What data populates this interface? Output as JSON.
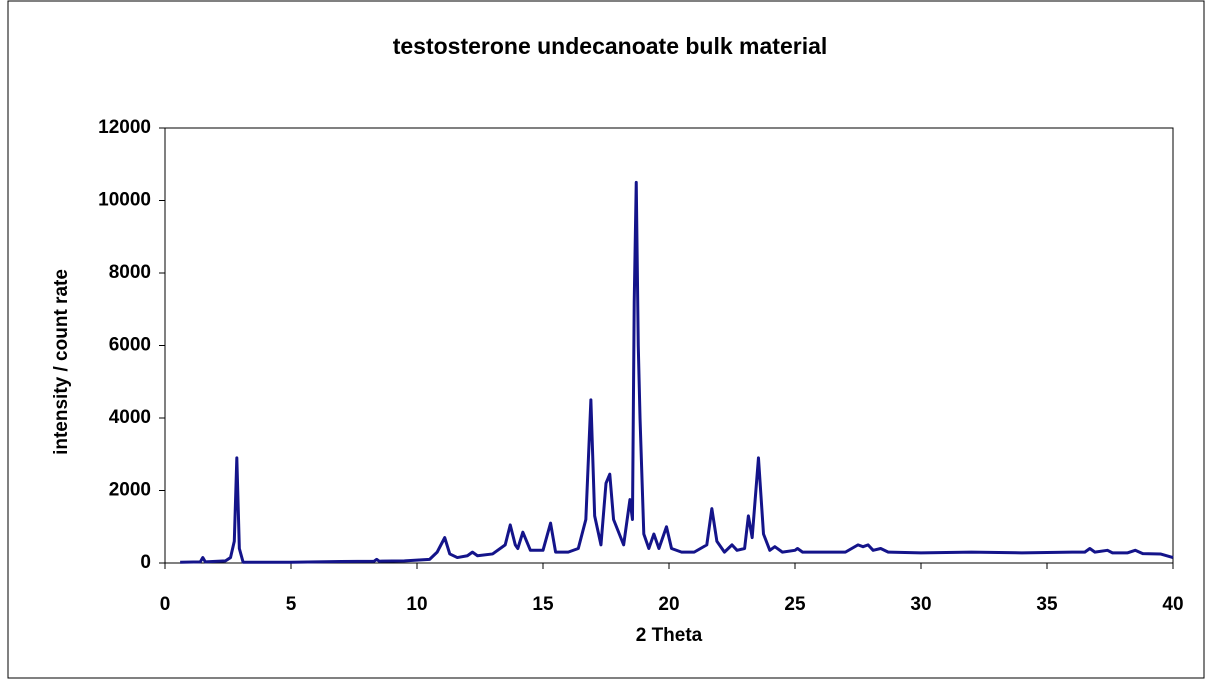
{
  "chart_data": {
    "type": "line",
    "title": "testosterone undecanoate bulk material",
    "xlabel": "2 Theta",
    "ylabel": "intensity / count rate",
    "x": [
      0.6,
      1.4,
      1.5,
      1.6,
      2.4,
      2.6,
      2.75,
      2.85,
      2.95,
      3.1,
      5,
      7,
      8.3,
      8.4,
      8.5,
      9.5,
      10.5,
      10.8,
      11.1,
      11.3,
      11.6,
      12.0,
      12.2,
      12.4,
      13.0,
      13.5,
      13.7,
      13.9,
      14.0,
      14.2,
      14.5,
      15.0,
      15.3,
      15.5,
      16.0,
      16.4,
      16.7,
      16.9,
      17.05,
      17.3,
      17.5,
      17.65,
      17.8,
      18.2,
      18.45,
      18.55,
      18.62,
      18.7,
      18.78,
      18.85,
      19.0,
      19.2,
      19.4,
      19.6,
      19.9,
      20.1,
      20.5,
      21.0,
      21.5,
      21.7,
      21.9,
      22.2,
      22.5,
      22.7,
      23.0,
      23.15,
      23.3,
      23.55,
      23.75,
      24.0,
      24.2,
      24.5,
      25.0,
      25.1,
      25.3,
      26,
      27,
      27.5,
      27.7,
      27.9,
      28.1,
      28.4,
      28.7,
      30,
      32,
      34,
      36,
      36.5,
      36.7,
      36.9,
      37.4,
      37.6,
      38.2,
      38.5,
      38.8,
      39.5,
      40
    ],
    "series": [
      {
        "name": "testosterone undecanoate",
        "color": "#14148a",
        "values": [
          20,
          30,
          150,
          30,
          60,
          150,
          600,
          2900,
          400,
          20,
          20,
          40,
          50,
          100,
          50,
          60,
          100,
          300,
          700,
          250,
          150,
          200,
          300,
          200,
          250,
          500,
          1050,
          500,
          400,
          850,
          350,
          350,
          1100,
          300,
          300,
          400,
          1200,
          4500,
          1300,
          500,
          2200,
          2450,
          1200,
          500,
          1750,
          1200,
          7200,
          10500,
          6000,
          4000,
          800,
          400,
          800,
          400,
          1000,
          400,
          300,
          300,
          500,
          1500,
          600,
          300,
          500,
          350,
          400,
          1300,
          700,
          2900,
          800,
          350,
          450,
          300,
          350,
          400,
          300,
          300,
          300,
          500,
          450,
          500,
          350,
          400,
          300,
          280,
          300,
          280,
          300,
          300,
          400,
          300,
          350,
          280,
          280,
          350,
          260,
          250,
          150
        ]
      }
    ],
    "xlim": [
      0,
      40
    ],
    "xticks": [
      0,
      5,
      10,
      15,
      20,
      25,
      30,
      35,
      40
    ],
    "ylim": [
      0,
      12000
    ],
    "yticks": [
      0,
      2000,
      4000,
      6000,
      8000,
      10000,
      12000
    ]
  }
}
